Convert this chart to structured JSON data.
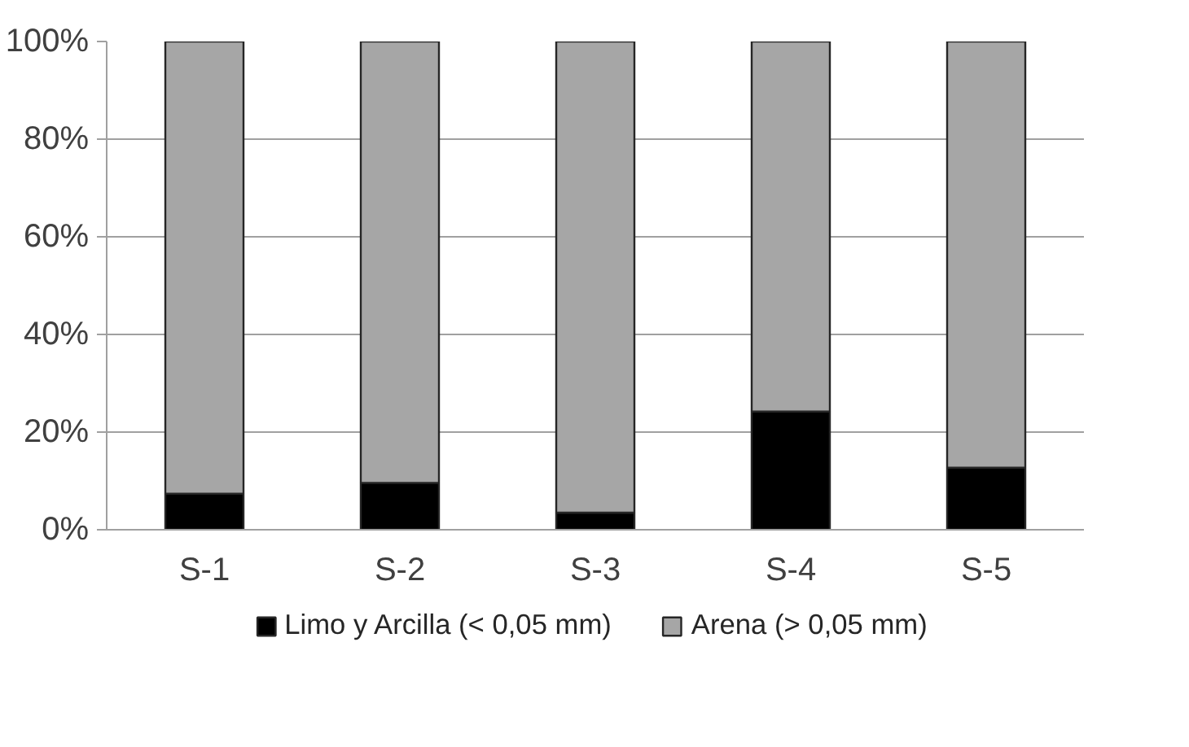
{
  "chart_data": {
    "type": "bar",
    "stacked": true,
    "categories": [
      "S-1",
      "S-2",
      "S-3",
      "S-4",
      "S-5"
    ],
    "series": [
      {
        "name": "Limo y Arcilla (< 0,05 mm)",
        "color": "#000000",
        "values": [
          7.4,
          9.6,
          3.5,
          24.2,
          12.7
        ]
      },
      {
        "name": "Arena (> 0,05 mm)",
        "color": "#a6a6a6",
        "values": [
          92.6,
          90.4,
          96.5,
          75.8,
          87.3
        ]
      }
    ],
    "ylim": [
      0,
      100
    ],
    "yticks": [
      {
        "value": 0,
        "label": "0%"
      },
      {
        "value": 20,
        "label": "20%"
      },
      {
        "value": 40,
        "label": "40%"
      },
      {
        "value": 60,
        "label": "60%"
      },
      {
        "value": 80,
        "label": "80%"
      },
      {
        "value": 100,
        "label": "100%"
      }
    ],
    "grid": "y",
    "legend": "bottom"
  }
}
